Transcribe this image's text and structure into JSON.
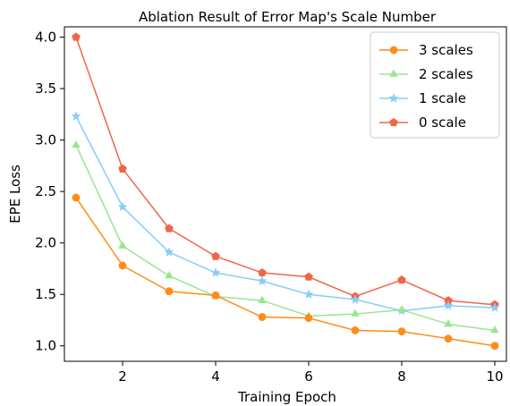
{
  "chart_data": {
    "type": "line",
    "title": "Ablation Result of Error Map's Scale Number",
    "xlabel": "Training Epoch",
    "ylabel": "EPE Loss",
    "x": [
      1,
      2,
      3,
      4,
      5,
      6,
      7,
      8,
      9,
      10
    ],
    "xlim": [
      0.75,
      10.25
    ],
    "ylim": [
      0.85,
      4.1
    ],
    "xticks": [
      2,
      4,
      6,
      8,
      10
    ],
    "yticks": [
      1.0,
      1.5,
      2.0,
      2.5,
      3.0,
      3.5,
      4.0
    ],
    "ytick_labels": [
      "1.0",
      "1.5",
      "2.0",
      "2.5",
      "3.0",
      "3.5",
      "4.0"
    ],
    "grid": false,
    "legend_position": "top-right",
    "series": [
      {
        "name": "3 scales",
        "color": "#ff8c1a",
        "marker": "circle",
        "values": [
          2.44,
          1.78,
          1.53,
          1.49,
          1.28,
          1.27,
          1.15,
          1.14,
          1.07,
          1.0
        ]
      },
      {
        "name": "2 scales",
        "color": "#98e690",
        "marker": "triangle",
        "values": [
          2.95,
          1.97,
          1.68,
          1.48,
          1.44,
          1.29,
          1.31,
          1.35,
          1.21,
          1.15
        ]
      },
      {
        "name": "1 scale",
        "color": "#87cdf5",
        "marker": "star",
        "values": [
          3.23,
          2.35,
          1.91,
          1.71,
          1.63,
          1.5,
          1.45,
          1.34,
          1.39,
          1.37
        ]
      },
      {
        "name": "0 scale",
        "color": "#f0654a",
        "marker": "pentagon",
        "values": [
          4.0,
          2.72,
          2.14,
          1.87,
          1.71,
          1.67,
          1.48,
          1.64,
          1.44,
          1.4
        ]
      }
    ]
  }
}
